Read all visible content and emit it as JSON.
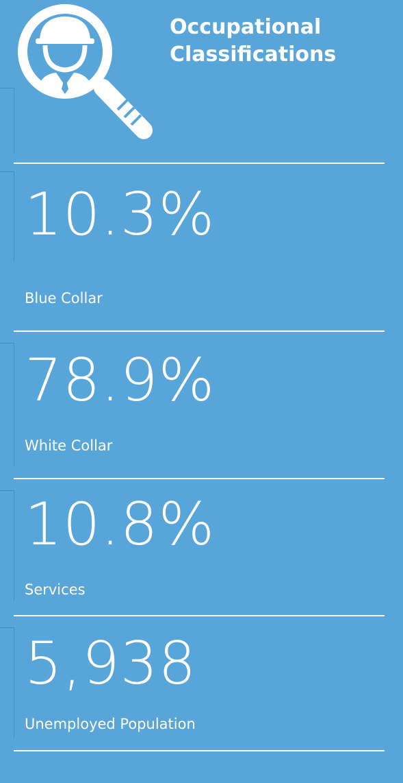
{
  "header": {
    "title": "Occupational Classifications"
  },
  "stats": [
    {
      "value": "10.3%",
      "label": "Blue Collar"
    },
    {
      "value": "78.9%",
      "label": "White Collar"
    },
    {
      "value": "10.8%",
      "label": "Services"
    },
    {
      "value": "5,938",
      "label": "Unemployed Population"
    }
  ]
}
